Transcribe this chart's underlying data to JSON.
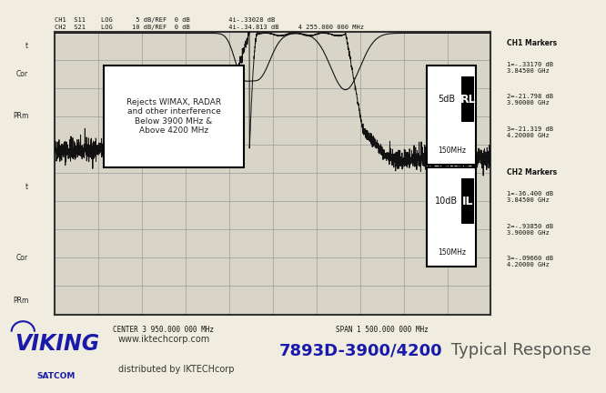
{
  "bg_color": "#f0ede0",
  "plot_bg": "#d8d5c8",
  "header_line1": "CH1  S11    LOG      5 dB/REF  0 dB          4i-.33028 dB",
  "header_line2": "CH2  S21    LOG     10 dB/REF  0 dB          4i-.34.813 dB     4 255.000 000 MHz",
  "center_text": "CENTER 3 950.000 000 MHz",
  "span_text": "SPAN 1 500.000 000 MHz",
  "annotation_text": "Rejects WIMAX, RADAR\nand other interference\nBelow 3900 MHz &\nAbove 4200 MHz",
  "ch1_markers_title": "CH1 Markers",
  "ch1_markers": [
    "1=-.33170 dB\n3.84500 GHz",
    "2=-21.798 dB\n3.90000 GHz",
    "3=-21.319 dB\n4.20000 GHz"
  ],
  "ch2_markers_title": "CH2 Markers",
  "ch2_markers": [
    "1=-36.400 dB\n3.84500 GHz",
    "2=-.93850 dB\n3.90000 GHz",
    "3=-.09660 dB\n4.20000 GHz"
  ],
  "grid_color": "#999999",
  "trace_color": "#111111",
  "freq_min": 3200,
  "freq_max": 4700,
  "title_bold": "7893D-3900/4200",
  "title_rest": " Typical Response",
  "viking_color": "#1a1aaa",
  "url1": "www.iktechcorp.com",
  "url2": "distributed by IKTECHcorp"
}
